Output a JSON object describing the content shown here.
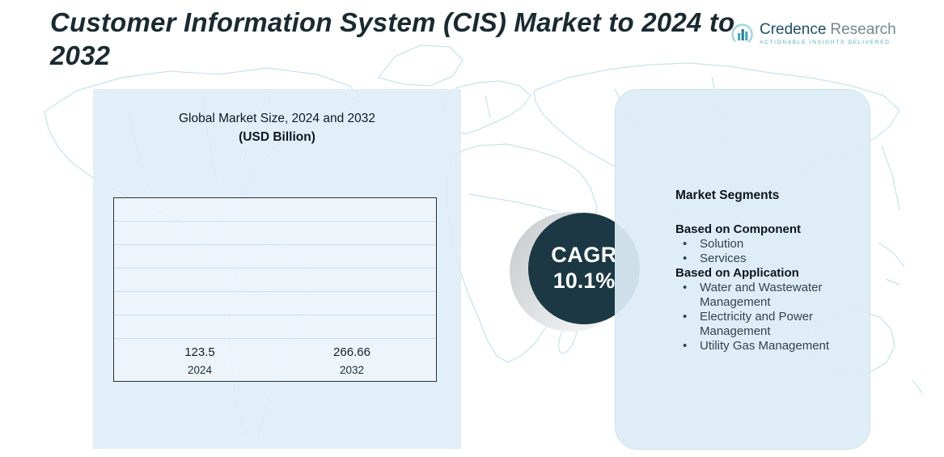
{
  "title": "Customer Information System (CIS) Market to 2024 to 2032",
  "logo": {
    "brand": "Credence",
    "brand2": "Research",
    "tagline": "Actionable Insights Delivered"
  },
  "chart_data": {
    "type": "bar",
    "title": "Global Market Size, 2024 and 2032",
    "subtitle": "(USD Billion)",
    "categories": [
      "2024",
      "2032"
    ],
    "values": [
      123.5,
      266.66
    ],
    "bar_colors": [
      "#4ba7a7",
      "#1e86b8"
    ],
    "ylim": [
      0,
      300
    ],
    "grid": true,
    "legend": "none"
  },
  "cagr": {
    "label": "CAGR",
    "value": "10.1%"
  },
  "segments": {
    "title": "Market Segments",
    "groups": [
      {
        "heading": "Based on Component",
        "items": [
          "Solution",
          "Services"
        ]
      },
      {
        "heading": "Based on Application",
        "items": [
          "Water and Wastewater Management",
          "Electricity and Power Management",
          "Utility Gas Management"
        ]
      }
    ]
  },
  "colors": {
    "accent_teal": "#4ba7a7",
    "accent_blue": "#1e86b8",
    "dark_navy": "#1b3844",
    "panel_blue": "#ddecf5",
    "map_line": "#b3dbe7"
  }
}
